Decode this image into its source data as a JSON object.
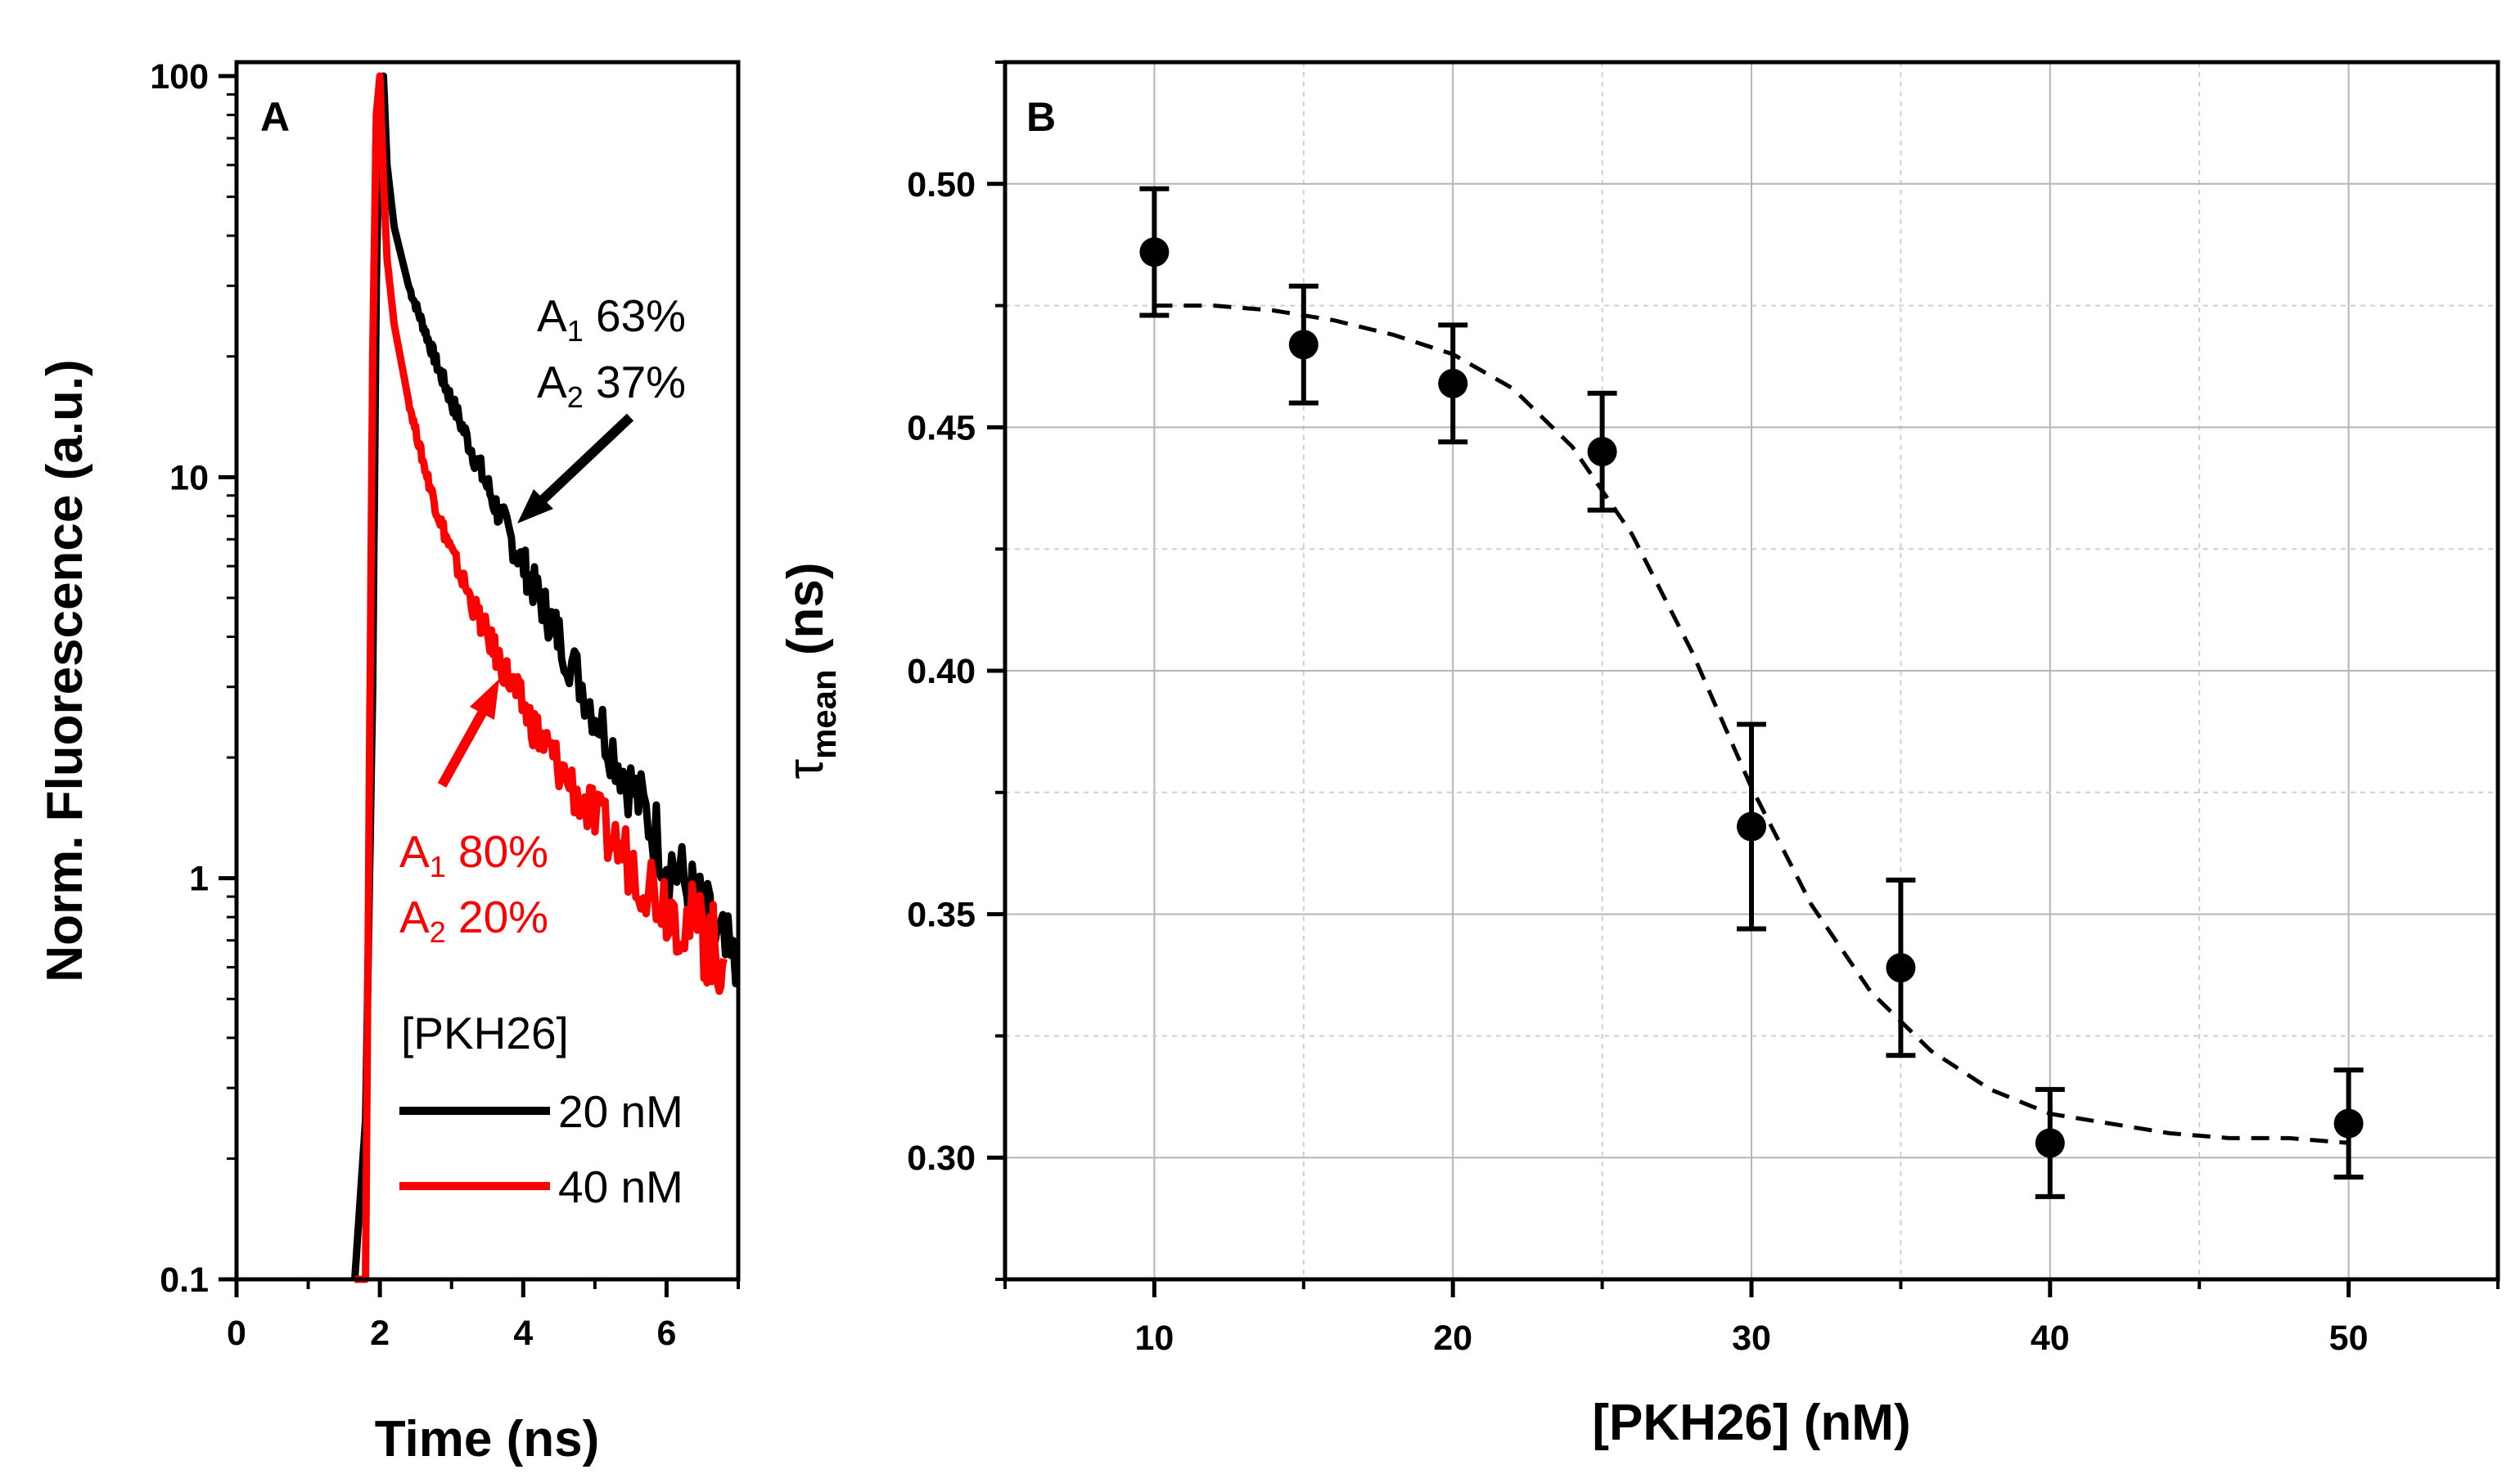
{
  "chart_data": [
    {
      "panel": "A",
      "type": "line",
      "xlabel": "Time (ns)",
      "ylabel": "Norm. Fluorescence (a.u.)",
      "yscale": "log",
      "xlim": [
        0,
        7
      ],
      "ylim": [
        0.1,
        100
      ],
      "xticks": [
        "0",
        "2",
        "4",
        "6"
      ],
      "yticks": [
        "0.1",
        "1",
        "10",
        "100"
      ],
      "legend_title": "[PKH26]",
      "series": [
        {
          "name": "20 nM",
          "color": "#000000",
          "x": [
            1.65,
            1.8,
            1.9,
            1.95,
            2.0,
            2.05,
            2.1,
            2.2,
            2.4,
            2.6,
            2.8,
            3.0,
            3.3,
            3.6,
            3.9,
            4.2,
            4.5,
            5.0,
            5.5,
            6.0,
            6.5,
            7.0
          ],
          "y": [
            0.1,
            0.25,
            3,
            30,
            90,
            100,
            60,
            42,
            30,
            24,
            19,
            15.5,
            11.5,
            8.6,
            6.6,
            5.1,
            4.0,
            2.6,
            1.7,
            1.15,
            0.8,
            0.55
          ],
          "annotation": [
            "A1 63%",
            "A2 37%"
          ]
        },
        {
          "name": "40 nM",
          "color": "#ff0000",
          "x": [
            1.65,
            1.8,
            1.85,
            1.9,
            1.95,
            2.0,
            2.05,
            2.1,
            2.2,
            2.4,
            2.6,
            2.8,
            3.0,
            3.3,
            3.6,
            3.9,
            4.2,
            4.5,
            5.0,
            5.5,
            6.0,
            6.5,
            6.8
          ],
          "y": [
            0.1,
            0.1,
            1.5,
            20,
            80,
            100,
            55,
            35,
            24,
            15.5,
            11,
            8.2,
            6.5,
            4.8,
            3.7,
            2.9,
            2.3,
            1.9,
            1.4,
            1.1,
            0.88,
            0.72,
            0.63
          ],
          "annotation": [
            "A1 80%",
            "A2 20%"
          ]
        }
      ]
    },
    {
      "panel": "B",
      "type": "scatter",
      "xlabel": "[PKH26] (nM)",
      "ylabel_symbol": "τ",
      "ylabel_sub": "mean",
      "ylabel_unit": "(ns)",
      "xlim": [
        5,
        55
      ],
      "ylim": [
        0.275,
        0.525
      ],
      "xticks": [
        "10",
        "20",
        "30",
        "40",
        "50"
      ],
      "yticks": [
        "0.30",
        "0.35",
        "0.40",
        "0.45",
        "0.50"
      ],
      "grid": true,
      "points": {
        "x": [
          10,
          15,
          20,
          25,
          30,
          35,
          40,
          50
        ],
        "y": [
          0.486,
          0.467,
          0.459,
          0.445,
          0.368,
          0.339,
          0.303,
          0.307
        ],
        "err": [
          0.013,
          0.012,
          0.012,
          0.012,
          0.021,
          0.018,
          0.011,
          0.011
        ]
      },
      "fit": {
        "style": "dashed",
        "x": [
          10,
          12,
          14,
          16,
          18,
          20,
          22,
          24,
          26,
          28,
          30,
          32,
          34,
          36,
          38,
          40,
          42,
          44,
          46,
          48,
          50
        ],
        "y": [
          0.475,
          0.475,
          0.474,
          0.472,
          0.469,
          0.465,
          0.458,
          0.446,
          0.428,
          0.404,
          0.376,
          0.352,
          0.334,
          0.322,
          0.314,
          0.309,
          0.307,
          0.305,
          0.304,
          0.304,
          0.303
        ]
      }
    }
  ]
}
